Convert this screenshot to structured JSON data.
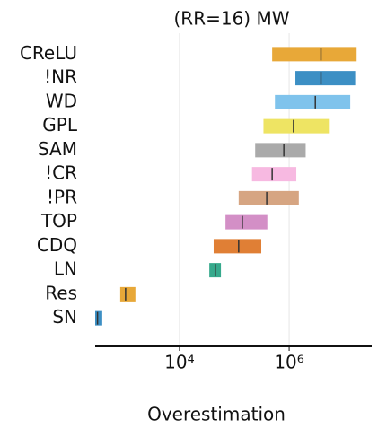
{
  "chart_data": {
    "type": "interval",
    "title": "(RR=16) MW",
    "xlabel": "Overestimation",
    "categories": [
      "CReLU",
      "!NR",
      "WD",
      "GPL",
      "SAM",
      "!CR",
      "!PR",
      "TOP",
      "CDQ",
      "LN",
      "Res",
      "SN"
    ],
    "lows": [
      490000,
      1300000,
      550000,
      340000,
      240000,
      210000,
      120000,
      69000,
      42000,
      35000,
      830,
      290
    ],
    "highs": [
      17000000,
      16000000,
      13000000,
      5300000,
      2000000,
      1350000,
      1500000,
      400000,
      310000,
      57000,
      1570,
      390
    ],
    "medians": [
      3800000,
      3800000,
      3000000,
      1200000,
      800000,
      490000,
      390000,
      140000,
      120000,
      45000,
      1040,
      320
    ],
    "colors": [
      "#e8a838",
      "#3c8fc4",
      "#7fc3ec",
      "#eee463",
      "#aaaaaa",
      "#f7b9e1",
      "#d6a582",
      "#d38fc6",
      "#e07f35",
      "#36a98c",
      "#e8a838",
      "#3c8fc4"
    ],
    "xscale": "log",
    "xlim": [
      290,
      32000000
    ],
    "xticks": [
      {
        "value": 10000,
        "label": "10⁴"
      },
      {
        "value": 1000000,
        "label": "10⁶"
      }
    ],
    "grid": true
  }
}
